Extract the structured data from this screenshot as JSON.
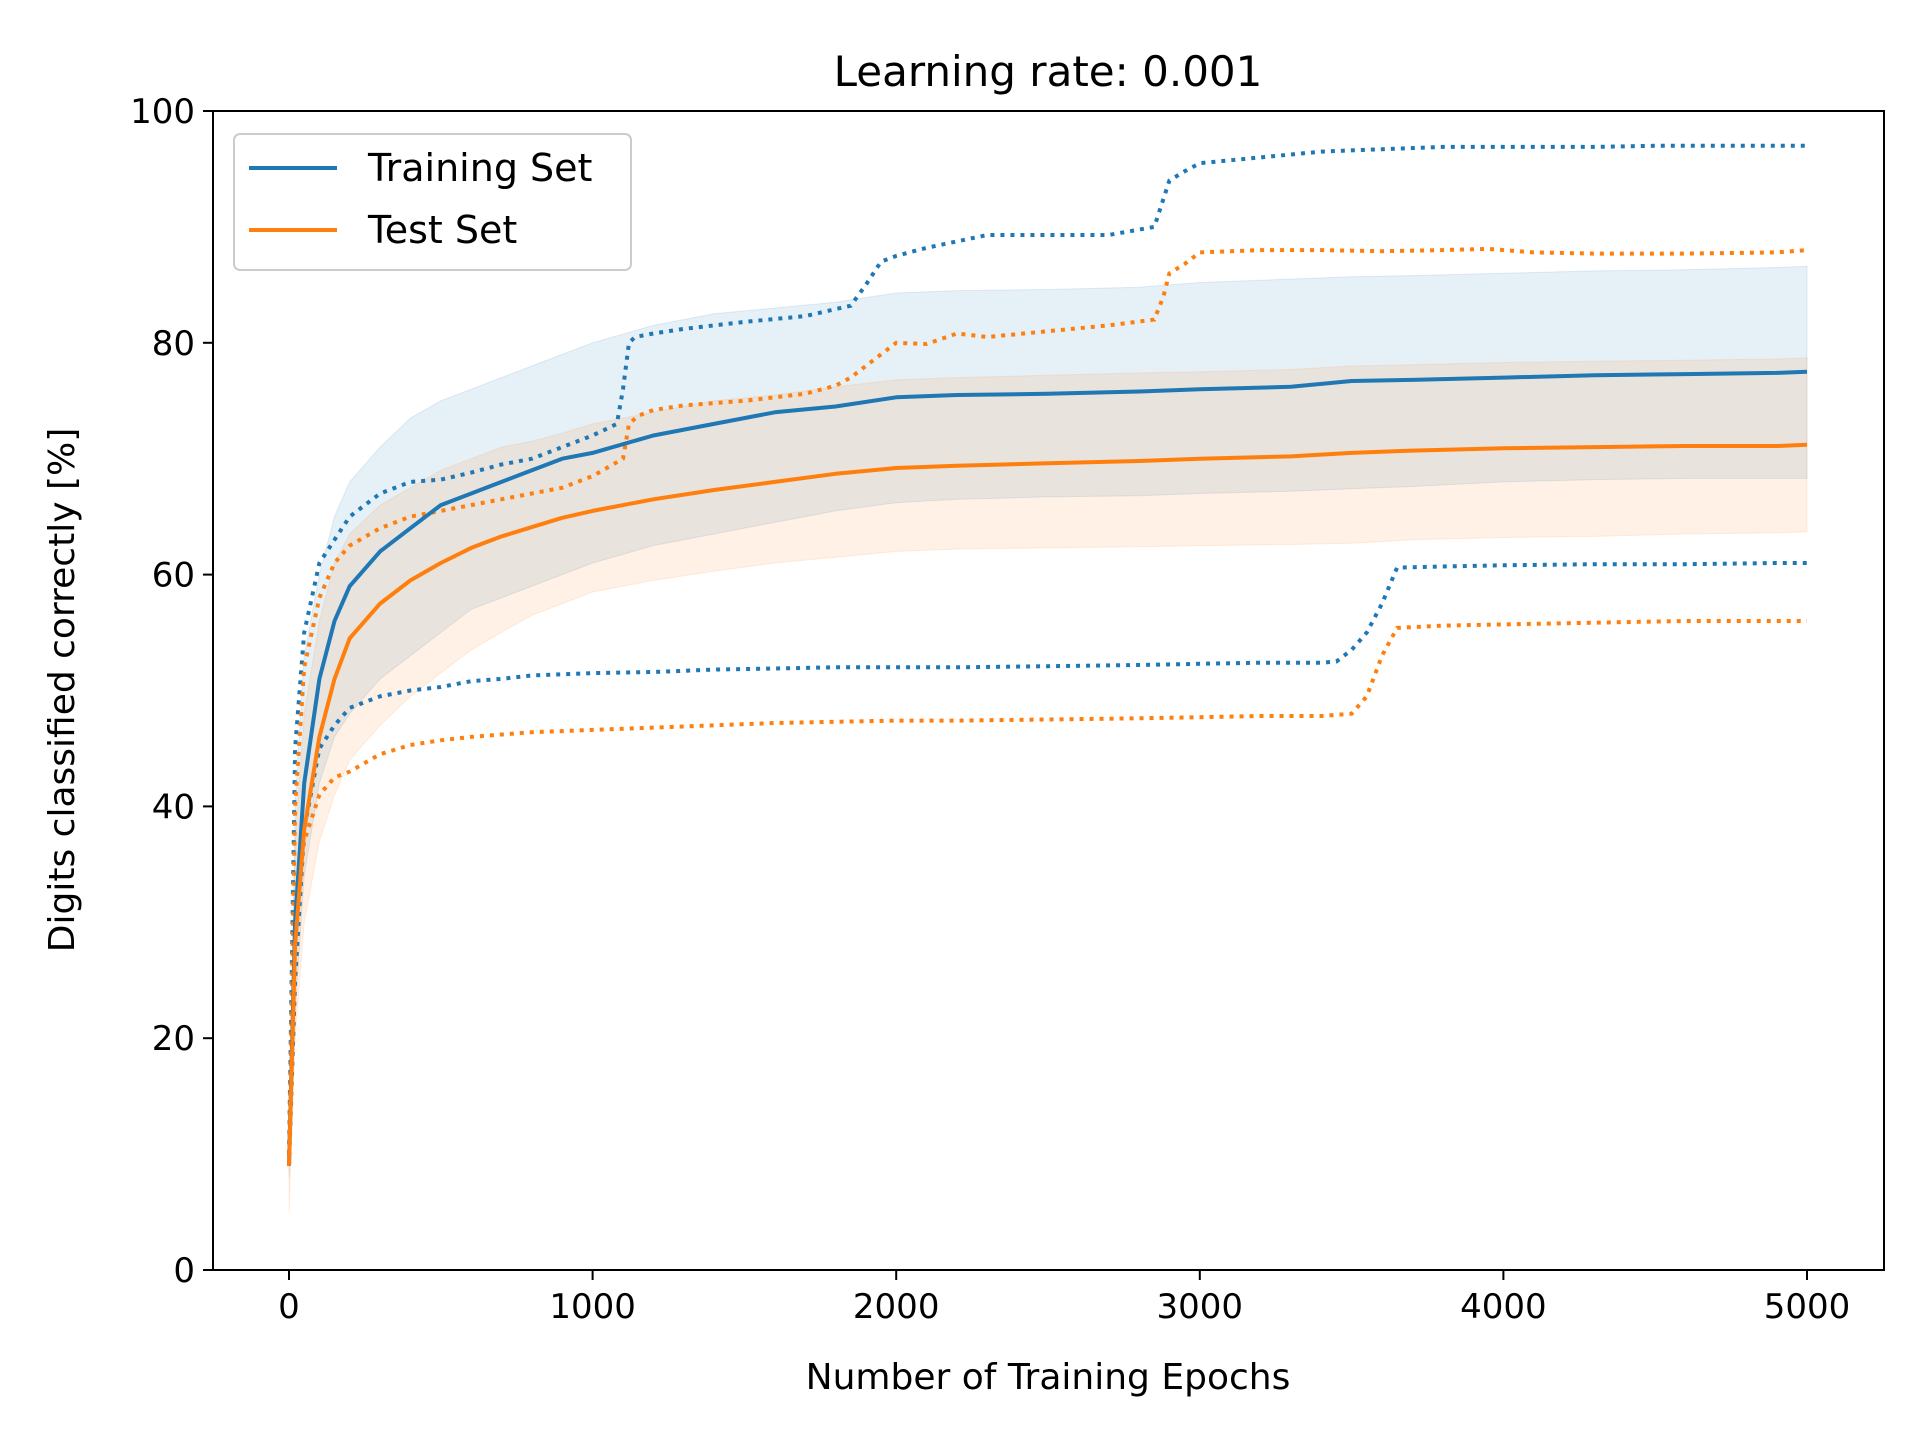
{
  "chart_data": {
    "type": "line",
    "title": "Learning rate: 0.001",
    "xlabel": "Number of Training Epochs",
    "ylabel": "Digits classified correctly [%]",
    "xlim": [
      -250,
      5250
    ],
    "ylim": [
      0,
      100
    ],
    "xticks": [
      0,
      1000,
      2000,
      3000,
      4000,
      5000
    ],
    "yticks": [
      0,
      20,
      40,
      60,
      80,
      100
    ],
    "legend": {
      "position": "upper-left",
      "entries": [
        {
          "label": "Training Set",
          "color": "#1f77b4"
        },
        {
          "label": "Test Set",
          "color": "#ff7f0e"
        }
      ]
    },
    "series": [
      {
        "name": "Training Set",
        "color": "#1f77b4",
        "x": [
          0,
          20,
          50,
          100,
          150,
          200,
          300,
          400,
          500,
          600,
          700,
          800,
          900,
          1000,
          1200,
          1400,
          1600,
          1800,
          2000,
          2200,
          2500,
          2800,
          3000,
          3300,
          3500,
          3700,
          4000,
          4300,
          4600,
          4900,
          5000
        ],
        "mean": [
          9,
          30,
          42,
          51,
          56,
          59,
          62,
          64,
          66,
          67,
          68,
          69,
          70,
          70.5,
          72,
          73,
          74,
          74.5,
          75.3,
          75.5,
          75.6,
          75.8,
          76,
          76.2,
          76.7,
          76.8,
          77,
          77.2,
          77.3,
          77.4,
          77.5
        ],
        "band_upper": [
          10,
          40,
          53,
          60,
          65,
          68,
          71,
          73.5,
          75,
          76,
          77,
          78,
          79,
          80,
          81.5,
          82.5,
          83,
          83.5,
          84.3,
          84.5,
          84.6,
          84.8,
          85.2,
          85.5,
          85.7,
          85.8,
          86,
          86.2,
          86.3,
          86.5,
          86.6
        ],
        "band_lower": [
          8,
          22,
          34,
          42,
          46,
          48,
          51,
          53,
          55,
          57,
          58,
          59,
          60,
          61,
          62.5,
          63.5,
          64.5,
          65.5,
          66.2,
          66.5,
          66.7,
          66.8,
          67,
          67.2,
          67.4,
          67.6,
          68,
          68.2,
          68.3,
          68.3,
          68.3
        ],
        "max_run": {
          "x": [
            0,
            20,
            50,
            100,
            150,
            200,
            300,
            400,
            500,
            600,
            700,
            800,
            900,
            1000,
            1080,
            1100,
            1120,
            1140,
            1200,
            1300,
            1500,
            1700,
            1850,
            1900,
            1950,
            2000,
            2100,
            2300,
            2500,
            2700,
            2850,
            2900,
            2950,
            3000,
            3200,
            3400,
            3600,
            3800,
            4000,
            4300,
            4500,
            4800,
            5000
          ],
          "y": [
            10,
            45,
            55,
            61,
            63,
            65,
            67,
            68,
            68.2,
            68.8,
            69.5,
            70,
            71,
            72,
            73,
            76,
            80,
            80.5,
            80.8,
            81.2,
            81.8,
            82.3,
            83.2,
            85,
            87,
            87.5,
            88.2,
            89.3,
            89.3,
            89.3,
            90,
            94,
            94.8,
            95.5,
            96,
            96.5,
            96.7,
            96.9,
            96.9,
            96.9,
            97,
            97,
            97
          ]
        },
        "min_run": {
          "x": [
            0,
            20,
            50,
            100,
            150,
            200,
            300,
            400,
            500,
            600,
            700,
            800,
            900,
            1000,
            1200,
            1400,
            1600,
            1800,
            2000,
            2200,
            2500,
            2800,
            3000,
            3200,
            3400,
            3450,
            3500,
            3550,
            3600,
            3650,
            3800,
            4000,
            4300,
            4600,
            4900,
            5000
          ],
          "y": [
            9,
            25,
            38,
            45,
            47,
            48.5,
            49.5,
            50,
            50.3,
            50.8,
            51,
            51.3,
            51.4,
            51.5,
            51.6,
            51.8,
            51.9,
            52,
            52,
            52,
            52.1,
            52.2,
            52.3,
            52.4,
            52.4,
            52.5,
            53.5,
            55,
            57.5,
            60.6,
            60.7,
            60.8,
            60.9,
            60.9,
            61,
            61
          ]
        }
      },
      {
        "name": "Test Set",
        "color": "#ff7f0e",
        "x": [
          0,
          20,
          50,
          100,
          150,
          200,
          300,
          400,
          500,
          600,
          700,
          800,
          900,
          1000,
          1200,
          1400,
          1600,
          1800,
          2000,
          2200,
          2500,
          2800,
          3000,
          3300,
          3500,
          3700,
          4000,
          4300,
          4600,
          4900,
          5000
        ],
        "mean": [
          9,
          28,
          38,
          46,
          51,
          54.5,
          57.5,
          59.5,
          61,
          62.3,
          63.3,
          64.1,
          64.9,
          65.5,
          66.5,
          67.3,
          68,
          68.7,
          69.2,
          69.4,
          69.6,
          69.8,
          70,
          70.2,
          70.5,
          70.7,
          70.9,
          71,
          71.1,
          71.1,
          71.2
        ],
        "band_upper": [
          10,
          37,
          48,
          56,
          61,
          63.5,
          66,
          67.5,
          69,
          70,
          71,
          71.5,
          72.2,
          73,
          74,
          75,
          75.5,
          76.2,
          76.8,
          77,
          77.2,
          77.4,
          77.5,
          77.7,
          78,
          78.1,
          78.3,
          78.4,
          78.5,
          78.6,
          78.7
        ],
        "band_lower": [
          5,
          20,
          30,
          37,
          41,
          44,
          47,
          49.5,
          51.5,
          53.5,
          55,
          56.5,
          57.5,
          58.5,
          59.5,
          60.3,
          61,
          61.5,
          62,
          62.2,
          62.3,
          62.4,
          62.5,
          62.6,
          62.7,
          63,
          63.2,
          63.3,
          63.5,
          63.6,
          63.7
        ],
        "max_run": {
          "x": [
            0,
            20,
            50,
            100,
            150,
            200,
            300,
            400,
            500,
            600,
            700,
            800,
            900,
            1000,
            1100,
            1120,
            1150,
            1200,
            1300,
            1500,
            1700,
            1800,
            1850,
            1900,
            1950,
            2000,
            2100,
            2200,
            2300,
            2500,
            2700,
            2850,
            2880,
            2900,
            2950,
            3000,
            3200,
            3400,
            3600,
            3800,
            3950,
            4100,
            4300,
            4600,
            4900,
            5000
          ],
          "y": [
            9,
            40,
            52,
            58,
            61,
            62.5,
            64,
            65,
            65.5,
            66,
            66.5,
            67,
            67.5,
            68.5,
            70,
            73,
            73.7,
            74.2,
            74.6,
            75,
            75.6,
            76.3,
            77,
            78,
            79,
            80,
            79.9,
            80.8,
            80.5,
            81,
            81.5,
            82,
            84,
            86,
            86.8,
            87.8,
            88,
            88,
            87.9,
            88,
            88.1,
            87.8,
            87.7,
            87.7,
            87.8,
            88
          ]
        },
        "min_run": {
          "x": [
            0,
            20,
            50,
            100,
            150,
            200,
            300,
            400,
            500,
            600,
            700,
            800,
            900,
            1000,
            1200,
            1400,
            1600,
            1800,
            2000,
            2200,
            2500,
            2800,
            3000,
            3200,
            3400,
            3500,
            3550,
            3600,
            3650,
            3800,
            4000,
            4200,
            4400,
            4600,
            4900,
            5000
          ],
          "y": [
            9,
            30,
            37,
            41,
            42.5,
            43,
            44.5,
            45.3,
            45.7,
            46,
            46.2,
            46.4,
            46.5,
            46.6,
            46.8,
            47,
            47.2,
            47.3,
            47.4,
            47.4,
            47.5,
            47.6,
            47.7,
            47.8,
            47.8,
            48,
            49.5,
            53,
            55.4,
            55.6,
            55.7,
            55.8,
            55.9,
            56,
            56,
            56
          ]
        }
      }
    ]
  }
}
